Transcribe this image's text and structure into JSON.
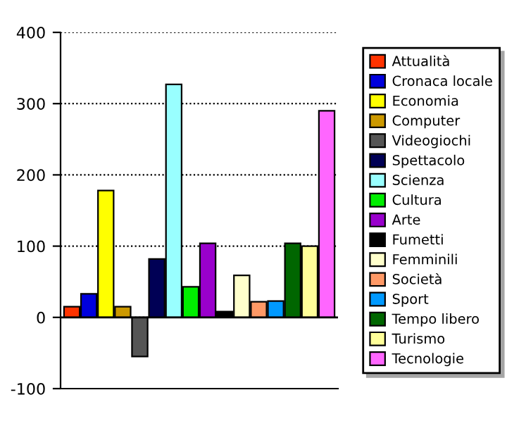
{
  "chart_data": {
    "type": "bar",
    "categories": [
      null
    ],
    "series": [
      {
        "name": "Attualità",
        "color": "#ff3300",
        "values": [
          15
        ]
      },
      {
        "name": "Cronaca locale",
        "color": "#0000dd",
        "values": [
          33
        ]
      },
      {
        "name": "Economia",
        "color": "#ffff00",
        "values": [
          178
        ]
      },
      {
        "name": "Computer",
        "color": "#cc9900",
        "values": [
          15
        ]
      },
      {
        "name": "Videogiochi",
        "color": "#555555",
        "values": [
          -55
        ]
      },
      {
        "name": "Spettacolo",
        "color": "#000055",
        "values": [
          82
        ]
      },
      {
        "name": "Scienza",
        "color": "#99ffff",
        "values": [
          327
        ]
      },
      {
        "name": "Cultura",
        "color": "#00ee00",
        "values": [
          43
        ]
      },
      {
        "name": "Arte",
        "color": "#9900cc",
        "values": [
          104
        ]
      },
      {
        "name": "Fumetti",
        "color": "#000000",
        "values": [
          8
        ]
      },
      {
        "name": "Femminili",
        "color": "#ffffcc",
        "values": [
          59
        ]
      },
      {
        "name": "Società",
        "color": "#ff9966",
        "values": [
          22
        ]
      },
      {
        "name": "Sport",
        "color": "#0099ff",
        "values": [
          23
        ]
      },
      {
        "name": "Tempo libero",
        "color": "#006600",
        "values": [
          104
        ]
      },
      {
        "name": "Turismo",
        "color": "#ffff99",
        "values": [
          100
        ]
      },
      {
        "name": "Tecnologie",
        "color": "#ff66ff",
        "values": [
          290
        ]
      }
    ],
    "ylim": [
      -100,
      400
    ],
    "yticks": [
      -100,
      0,
      100,
      200,
      300,
      400
    ],
    "grid": "y",
    "legend": "right",
    "tick_labels": "y"
  }
}
